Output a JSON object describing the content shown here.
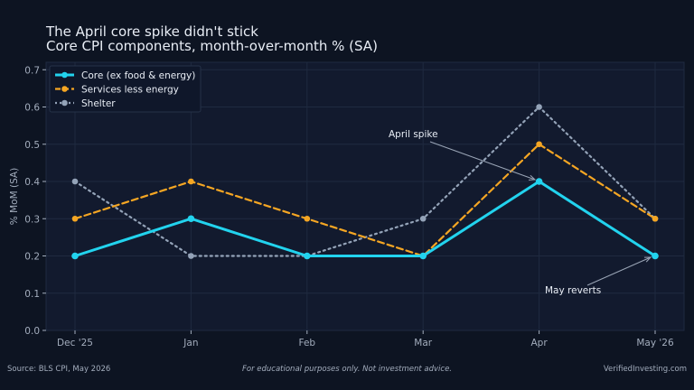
{
  "footer": {
    "source": "Source: BLS CPI, May 2026",
    "disclaimer": "For educational purposes only. Not investment advice.",
    "brand": "VerifiedInvesting.com"
  },
  "colors": {
    "background": "#0d1422",
    "plot_background": "#121a2e",
    "core": "#22d3ee",
    "services": "#f5a623",
    "shelter": "#94a3b8"
  },
  "chart_data": {
    "type": "line",
    "title": "The April core spike didn't stick",
    "subtitle": "Core CPI components, month-over-month % (SA)",
    "xlabel": "",
    "ylabel": "% MoM (SA)",
    "categories": [
      "Dec '25",
      "Jan",
      "Feb",
      "Mar",
      "Apr",
      "May '26"
    ],
    "ylim": [
      0,
      0.72
    ],
    "yticks": [
      "0.0",
      "0.1",
      "0.2",
      "0.3",
      "0.4",
      "0.5",
      "0.6",
      "0.7"
    ],
    "legend_position": "top-left",
    "grid": true,
    "series": [
      {
        "name": "Core (ex food & energy)",
        "values": [
          0.2,
          0.3,
          0.2,
          0.2,
          0.4,
          0.2
        ],
        "style": "solid",
        "color": "#22d3ee"
      },
      {
        "name": "Services less energy",
        "values": [
          0.3,
          0.4,
          0.3,
          0.2,
          0.5,
          0.3
        ],
        "style": "dashed",
        "color": "#f5a623"
      },
      {
        "name": "Shelter",
        "values": [
          0.4,
          0.2,
          0.2,
          0.3,
          0.6,
          0.3
        ],
        "style": "dotted",
        "color": "#94a3b8"
      }
    ],
    "annotations": [
      {
        "text": "April spike",
        "target_category": "Apr",
        "target_value": 0.4
      },
      {
        "text": "May reverts",
        "target_category": "May '26",
        "target_value": 0.2
      }
    ]
  }
}
